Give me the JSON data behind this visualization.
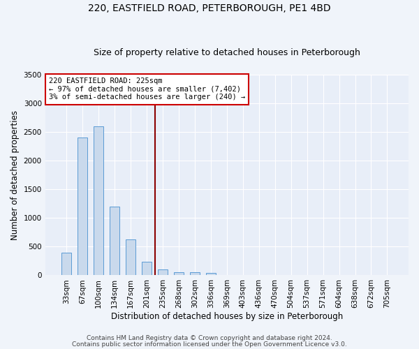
{
  "title1": "220, EASTFIELD ROAD, PETERBOROUGH, PE1 4BD",
  "title2": "Size of property relative to detached houses in Peterborough",
  "xlabel": "Distribution of detached houses by size in Peterborough",
  "ylabel": "Number of detached properties",
  "categories": [
    "33sqm",
    "67sqm",
    "100sqm",
    "134sqm",
    "167sqm",
    "201sqm",
    "235sqm",
    "268sqm",
    "302sqm",
    "336sqm",
    "369sqm",
    "403sqm",
    "436sqm",
    "470sqm",
    "504sqm",
    "537sqm",
    "571sqm",
    "604sqm",
    "638sqm",
    "672sqm",
    "705sqm"
  ],
  "values": [
    400,
    2400,
    2600,
    1200,
    620,
    240,
    100,
    60,
    50,
    40,
    5,
    0,
    0,
    0,
    0,
    0,
    0,
    0,
    0,
    0,
    0
  ],
  "bar_color": "#c9d9ec",
  "bar_edge_color": "#5b9bd5",
  "vline_x_index": 6,
  "vline_color": "#8b0000",
  "annotation_line1": "220 EASTFIELD ROAD: 225sqm",
  "annotation_line2": "← 97% of detached houses are smaller (7,402)",
  "annotation_line3": "3% of semi-detached houses are larger (240) →",
  "annotation_box_color": "white",
  "annotation_box_edge": "#cc0000",
  "ylim": [
    0,
    3500
  ],
  "yticks": [
    0,
    500,
    1000,
    1500,
    2000,
    2500,
    3000,
    3500
  ],
  "fig_bg": "#f0f4fa",
  "plot_bg": "#e8eef8",
  "grid_color": "white",
  "footer1": "Contains HM Land Registry data © Crown copyright and database right 2024.",
  "footer2": "Contains public sector information licensed under the Open Government Licence v3.0.",
  "title1_fontsize": 10,
  "title2_fontsize": 9,
  "xlabel_fontsize": 8.5,
  "ylabel_fontsize": 8.5,
  "tick_fontsize": 7.5,
  "ann_fontsize": 7.5,
  "footer_fontsize": 6.5
}
